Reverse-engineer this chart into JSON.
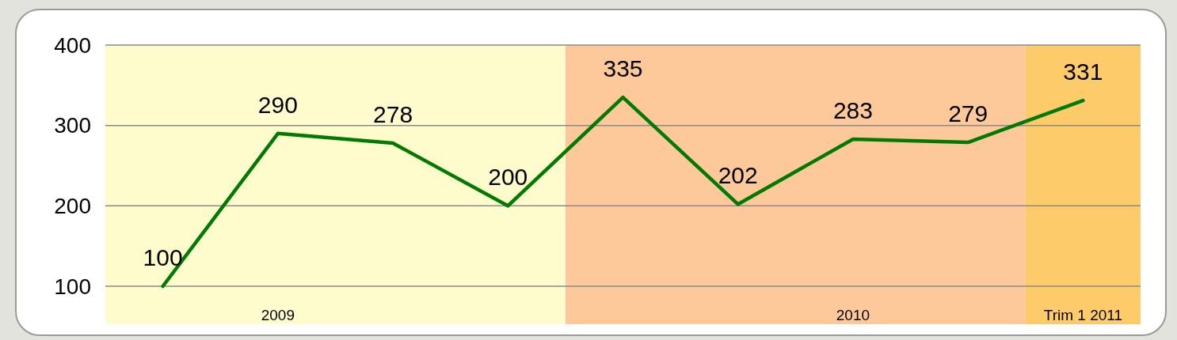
{
  "chart_data": {
    "type": "line",
    "categories": [
      null,
      "2009",
      null,
      null,
      null,
      null,
      "2010",
      null,
      "Trim 1 2011"
    ],
    "series": [
      {
        "color": "#007a00",
        "values": [
          100,
          290,
          278,
          200,
          335,
          202,
          283,
          279,
          331
        ]
      }
    ],
    "ylim": [
      100,
      400
    ],
    "yticks": [
      100,
      200,
      300,
      400
    ],
    "grid": "y",
    "data_labels": true,
    "line_style": "solid"
  }
}
